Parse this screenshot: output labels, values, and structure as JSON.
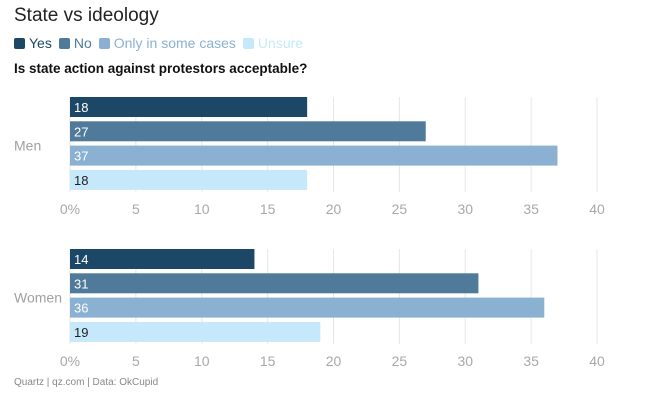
{
  "title": "State vs ideology",
  "subtitle": "Is state action against protestors acceptable?",
  "footer": "Quartz | qz.com | Data: OkCupid",
  "colors": {
    "yes": "#1c4766",
    "no": "#4f7a9a",
    "some": "#8ab1d2",
    "unsure": "#c5e8fb",
    "grid": "#e6e6e6",
    "tick": "#a8a8a8"
  },
  "chart_data": {
    "type": "bar",
    "orientation": "horizontal",
    "title": "State vs ideology",
    "subtitle": "Is state action against protestors acceptable?",
    "legend_position": "top-left",
    "series": [
      {
        "name": "Yes",
        "color_key": "yes"
      },
      {
        "name": "No",
        "color_key": "no"
      },
      {
        "name": "Only in some cases",
        "color_key": "some"
      },
      {
        "name": "Unsure",
        "color_key": "unsure"
      }
    ],
    "groups": [
      {
        "category": "Men",
        "values": [
          18,
          27,
          37,
          18
        ]
      },
      {
        "category": "Women",
        "values": [
          14,
          31,
          36,
          19
        ]
      }
    ],
    "xlim": [
      0,
      40
    ],
    "ticks": [
      0,
      5,
      10,
      15,
      20,
      25,
      30,
      35,
      40
    ],
    "tick_labels": [
      "0%",
      "5",
      "10",
      "15",
      "20",
      "25",
      "30",
      "35",
      "40"
    ],
    "grid": true
  }
}
